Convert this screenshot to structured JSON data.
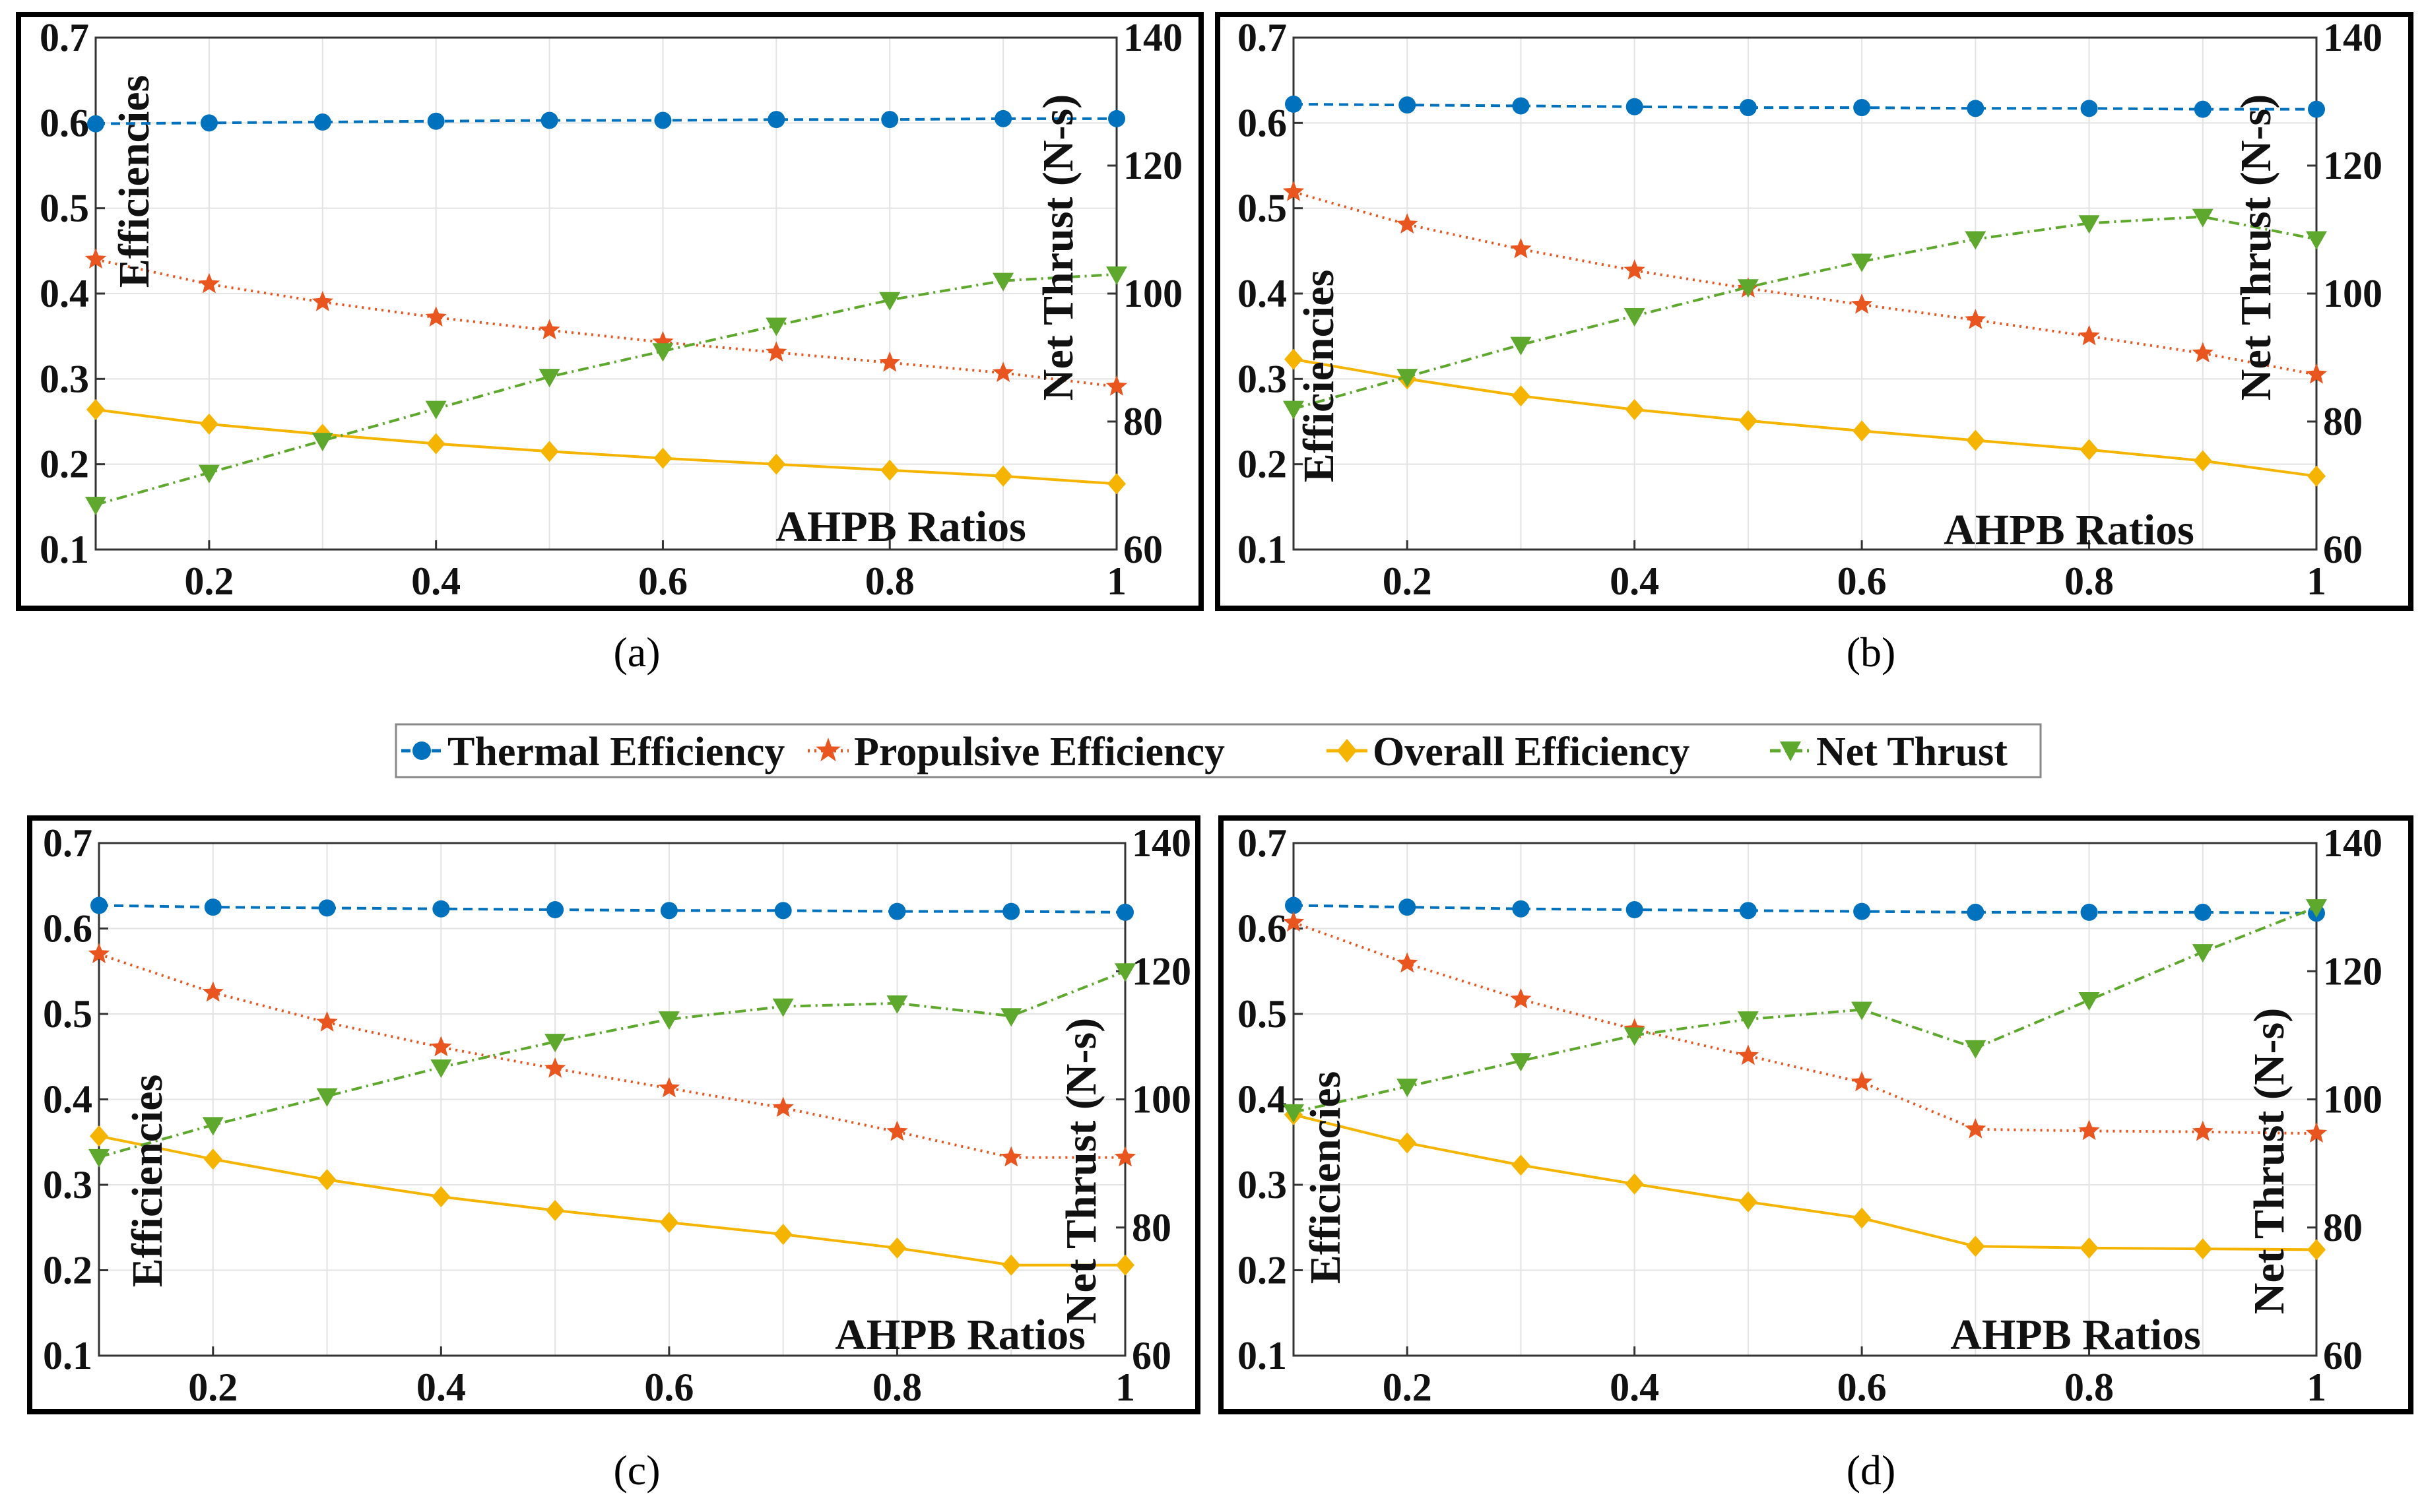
{
  "legend": {
    "items": [
      {
        "name": "Thermal Efficiency",
        "color": "#0072BD",
        "marker": "circle",
        "line": "dashed"
      },
      {
        "name": "Propulsive Efficiency",
        "color": "#E8551F",
        "marker": "star",
        "line": "dotted"
      },
      {
        "name": "Overall Efficiency",
        "color": "#F4B400",
        "marker": "diamond",
        "line": "solid"
      },
      {
        "name": "Net Thrust",
        "color": "#5EA82E",
        "marker": "triangle-down",
        "line": "dashdot"
      }
    ]
  },
  "chart_data": [
    {
      "type": "line",
      "panel_label": "(a)",
      "xlabel": "AHPB Ratios",
      "ylabel": "Efficiencies",
      "y2label": "Net Thrust (N-s)",
      "xlim": [
        0.1,
        1.0
      ],
      "ylim": [
        0.1,
        0.7
      ],
      "y2lim": [
        60,
        140
      ],
      "xticks": [
        "0.2",
        "0.4",
        "0.6",
        "0.8",
        "1"
      ],
      "yticks": [
        "0.1",
        "0.2",
        "0.3",
        "0.4",
        "0.5",
        "0.6",
        "0.7"
      ],
      "y2ticks": [
        "60",
        "80",
        "100",
        "120",
        "140"
      ],
      "x": [
        0.1,
        0.2,
        0.3,
        0.4,
        0.5,
        0.6,
        0.7,
        0.8,
        0.9,
        1.0
      ],
      "series": [
        {
          "name": "Thermal Efficiency",
          "axis": "left",
          "values": [
            0.599,
            0.6,
            0.601,
            0.602,
            0.603,
            0.603,
            0.604,
            0.604,
            0.605,
            0.605
          ]
        },
        {
          "name": "Propulsive Efficiency",
          "axis": "left",
          "values": [
            0.44,
            0.411,
            0.39,
            0.372,
            0.357,
            0.343,
            0.331,
            0.319,
            0.307,
            0.291
          ]
        },
        {
          "name": "Overall Efficiency",
          "axis": "left",
          "values": [
            0.264,
            0.247,
            0.235,
            0.224,
            0.215,
            0.207,
            0.2,
            0.193,
            0.186,
            0.177
          ]
        },
        {
          "name": "Net Thrust",
          "axis": "right",
          "values": [
            67,
            72,
            77,
            82,
            87,
            91,
            95,
            99,
            102,
            103
          ]
        }
      ]
    },
    {
      "type": "line",
      "panel_label": "(b)",
      "xlabel": "AHPB Ratios",
      "ylabel": "Efficiencies",
      "y2label": "Net Thrust (N-s)",
      "xlim": [
        0.1,
        1.0
      ],
      "ylim": [
        0.1,
        0.7
      ],
      "y2lim": [
        60,
        140
      ],
      "xticks": [
        "0.2",
        "0.4",
        "0.6",
        "0.8",
        "1"
      ],
      "yticks": [
        "0.1",
        "0.2",
        "0.3",
        "0.4",
        "0.5",
        "0.6",
        "0.7"
      ],
      "y2ticks": [
        "60",
        "80",
        "100",
        "120",
        "140"
      ],
      "x": [
        0.1,
        0.2,
        0.3,
        0.4,
        0.5,
        0.6,
        0.7,
        0.8,
        0.9,
        1.0
      ],
      "series": [
        {
          "name": "Thermal Efficiency",
          "axis": "left",
          "values": [
            0.622,
            0.621,
            0.62,
            0.619,
            0.618,
            0.618,
            0.617,
            0.617,
            0.616,
            0.616
          ]
        },
        {
          "name": "Propulsive Efficiency",
          "axis": "left",
          "values": [
            0.519,
            0.481,
            0.452,
            0.427,
            0.406,
            0.387,
            0.369,
            0.35,
            0.33,
            0.305
          ]
        },
        {
          "name": "Overall Efficiency",
          "axis": "left",
          "values": [
            0.323,
            0.3,
            0.28,
            0.264,
            0.251,
            0.239,
            0.228,
            0.217,
            0.204,
            0.186
          ]
        },
        {
          "name": "Net Thrust",
          "axis": "right",
          "values": [
            82,
            87,
            92,
            96.5,
            101,
            105,
            108.5,
            111,
            112,
            108.5
          ]
        }
      ]
    },
    {
      "type": "line",
      "panel_label": "(c)",
      "xlabel": "AHPB Ratios",
      "ylabel": "Efficiencies",
      "y2label": "Net Thrust (N-s)",
      "xlim": [
        0.1,
        1.0
      ],
      "ylim": [
        0.1,
        0.7
      ],
      "y2lim": [
        60,
        140
      ],
      "xticks": [
        "0.2",
        "0.4",
        "0.6",
        "0.8",
        "1"
      ],
      "yticks": [
        "0.1",
        "0.2",
        "0.3",
        "0.4",
        "0.5",
        "0.6",
        "0.7"
      ],
      "y2ticks": [
        "60",
        "80",
        "100",
        "120",
        "140"
      ],
      "x": [
        0.1,
        0.2,
        0.3,
        0.4,
        0.5,
        0.6,
        0.7,
        0.8,
        0.9,
        1.0
      ],
      "series": [
        {
          "name": "Thermal Efficiency",
          "axis": "left",
          "values": [
            0.627,
            0.625,
            0.624,
            0.623,
            0.622,
            0.621,
            0.621,
            0.62,
            0.62,
            0.619
          ]
        },
        {
          "name": "Propulsive Efficiency",
          "axis": "left",
          "values": [
            0.57,
            0.525,
            0.49,
            0.461,
            0.436,
            0.413,
            0.39,
            0.362,
            0.332,
            0.332
          ]
        },
        {
          "name": "Overall Efficiency",
          "axis": "left",
          "values": [
            0.357,
            0.33,
            0.306,
            0.286,
            0.27,
            0.256,
            0.242,
            0.226,
            0.206,
            0.206
          ]
        },
        {
          "name": "Net Thrust",
          "axis": "right",
          "values": [
            91,
            96,
            100.5,
            105,
            109,
            112.5,
            114.5,
            115,
            113,
            120
          ]
        }
      ]
    },
    {
      "type": "line",
      "panel_label": "(d)",
      "xlabel": "AHPB Ratios",
      "ylabel": "Efficiencies",
      "y2label": "Net Thrust (N-s)",
      "xlim": [
        0.1,
        1.0
      ],
      "ylim": [
        0.1,
        0.7
      ],
      "y2lim": [
        60,
        140
      ],
      "xticks": [
        "0.2",
        "0.4",
        "0.6",
        "0.8",
        "1"
      ],
      "yticks": [
        "0.1",
        "0.2",
        "0.3",
        "0.4",
        "0.5",
        "0.6",
        "0.7"
      ],
      "y2ticks": [
        "60",
        "80",
        "100",
        "120",
        "140"
      ],
      "x": [
        0.1,
        0.2,
        0.3,
        0.4,
        0.5,
        0.6,
        0.7,
        0.8,
        0.9,
        1.0
      ],
      "series": [
        {
          "name": "Thermal Efficiency",
          "axis": "left",
          "values": [
            0.627,
            0.625,
            0.623,
            0.622,
            0.621,
            0.62,
            0.619,
            0.619,
            0.619,
            0.618
          ]
        },
        {
          "name": "Propulsive Efficiency",
          "axis": "left",
          "values": [
            0.607,
            0.559,
            0.517,
            0.482,
            0.451,
            0.42,
            0.365,
            0.363,
            0.362,
            0.36
          ]
        },
        {
          "name": "Overall Efficiency",
          "axis": "left",
          "values": [
            0.382,
            0.349,
            0.323,
            0.301,
            0.28,
            0.261,
            0.228,
            0.226,
            0.225,
            0.224
          ]
        },
        {
          "name": "Net Thrust",
          "axis": "right",
          "values": [
            98,
            102,
            106,
            110,
            112.5,
            114,
            108,
            115.5,
            123,
            130
          ]
        }
      ]
    }
  ]
}
